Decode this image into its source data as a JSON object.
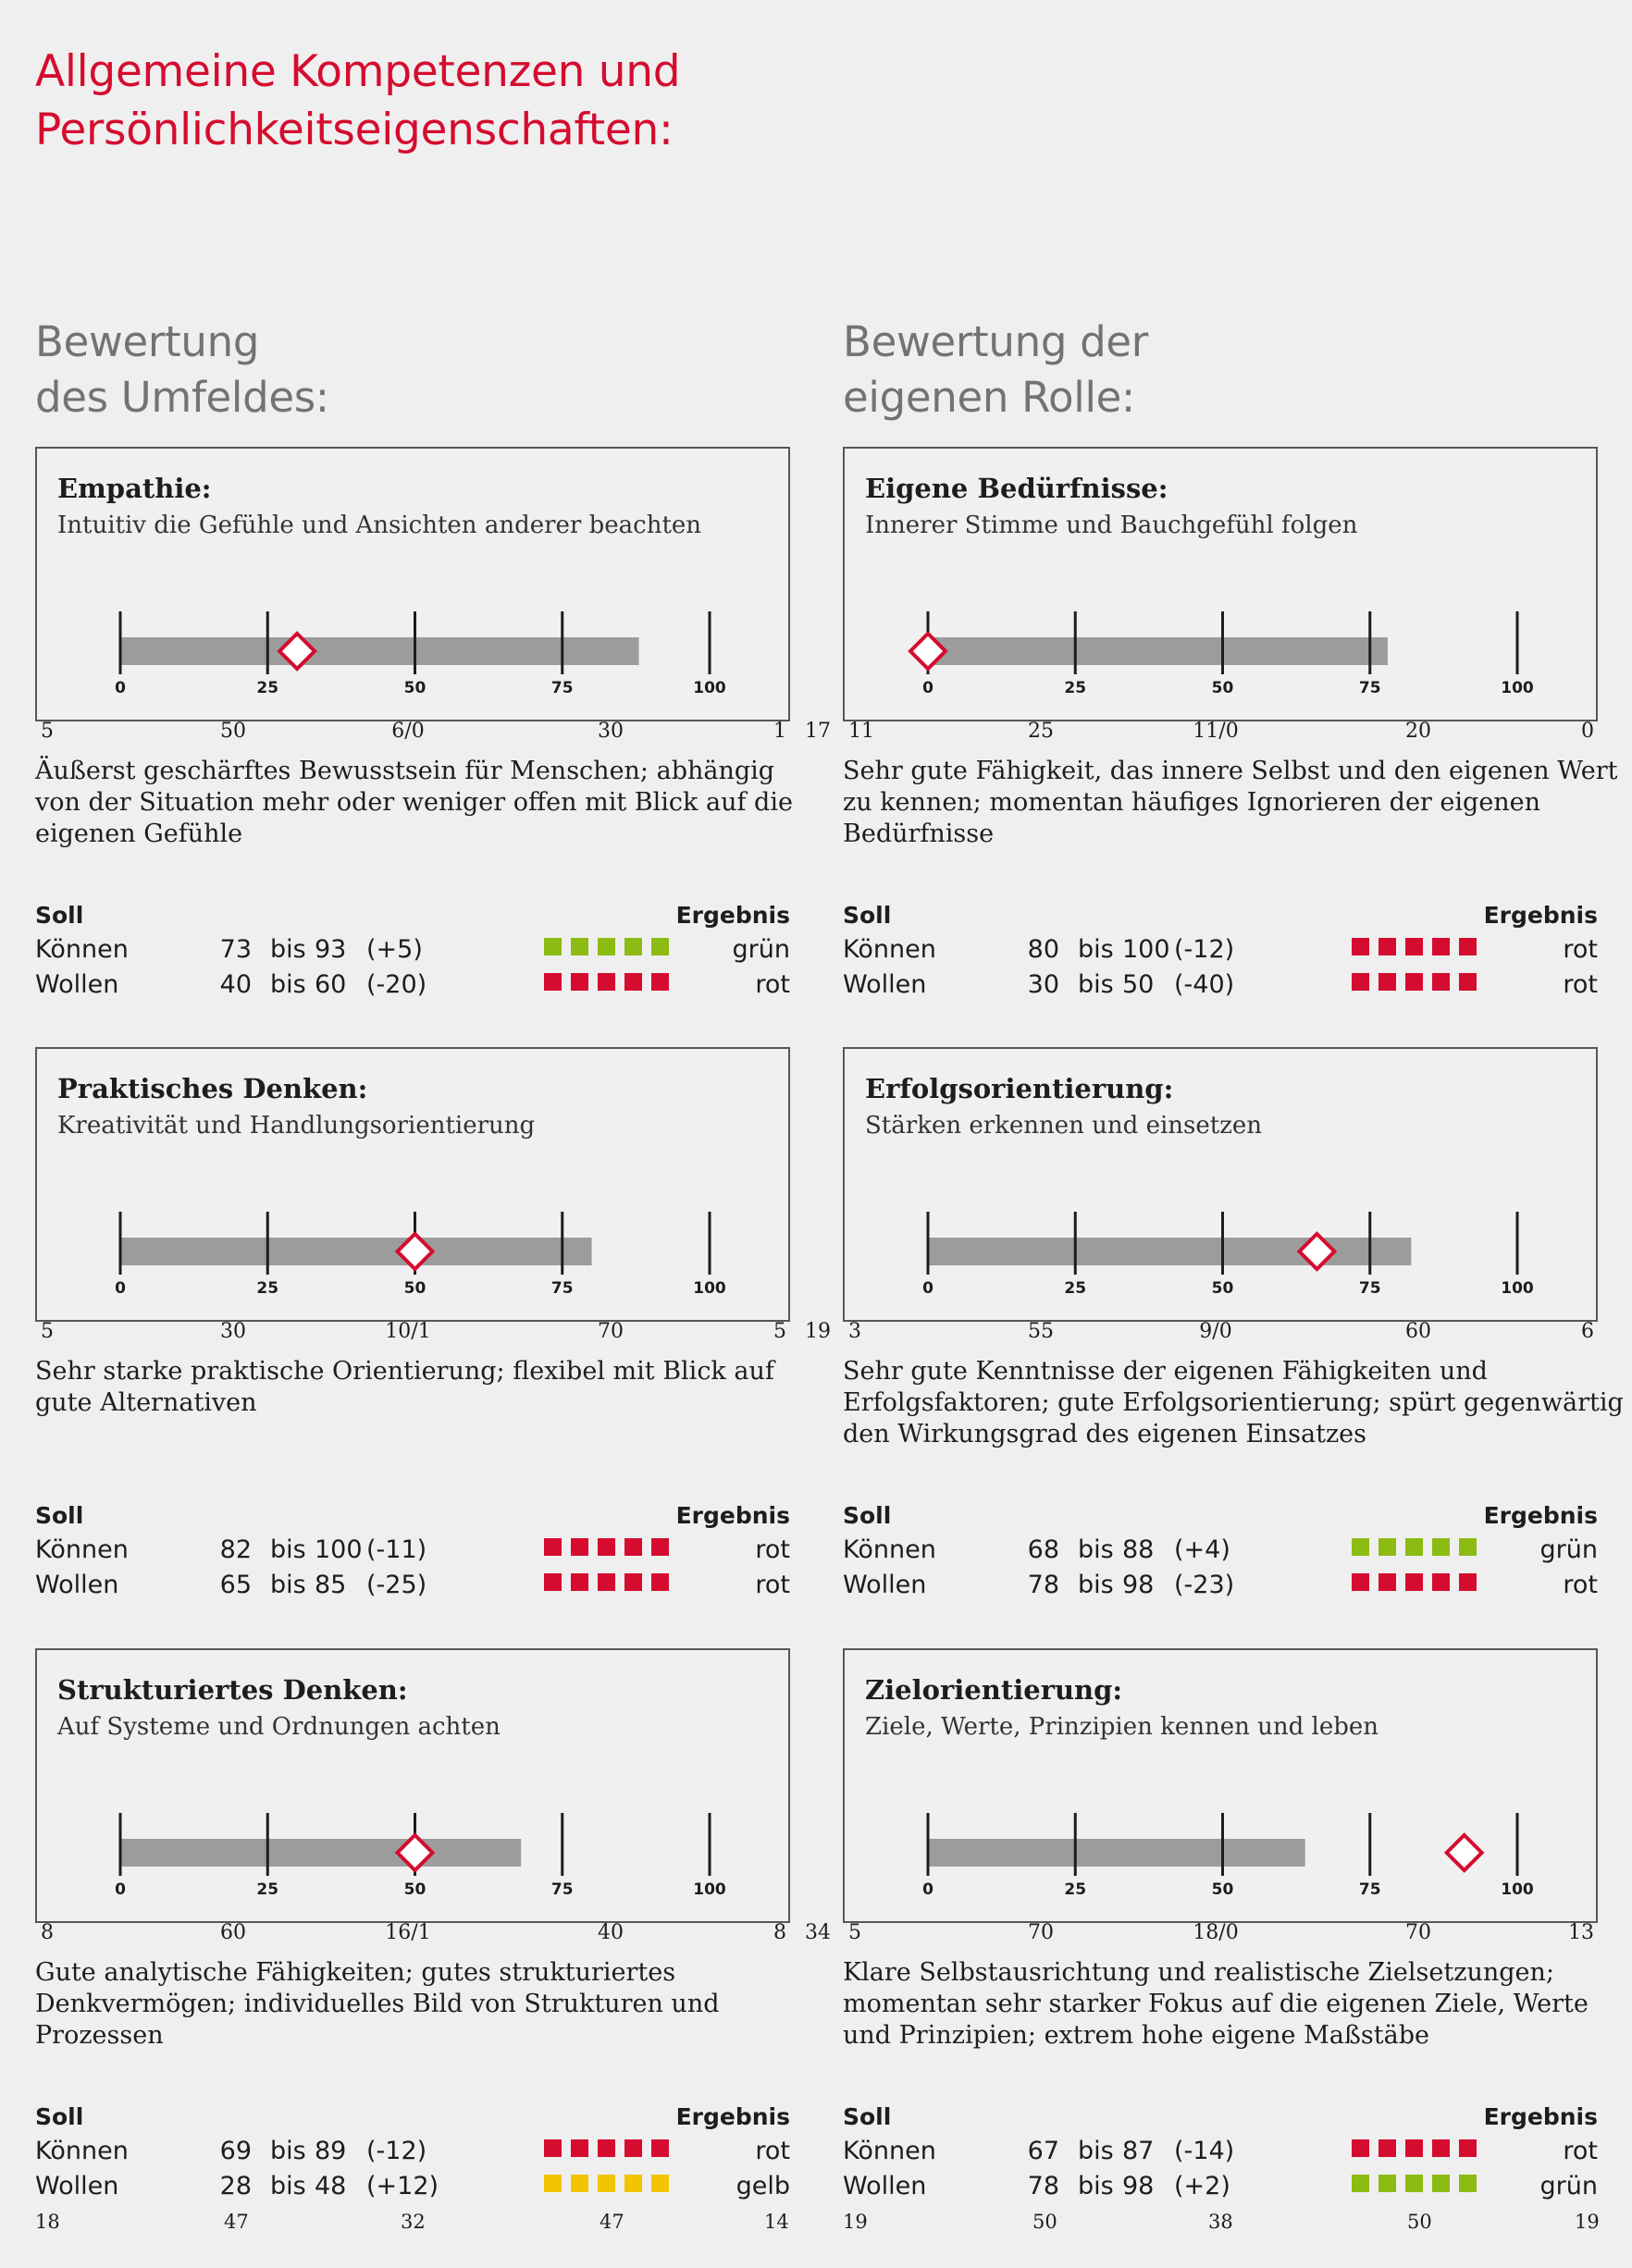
{
  "title": [
    "Allgemeine Kompetenzen und",
    "Persönlichkeitseigenschaften:"
  ],
  "columns": [
    {
      "heading": [
        "Bewertung",
        "des Umfeldes:"
      ]
    },
    {
      "heading": [
        "Bewertung der",
        "eigenen Rolle:"
      ]
    }
  ],
  "scale_labels": [
    "0",
    "25",
    "50",
    "75",
    "100"
  ],
  "soll_label": "Soll",
  "ergebnis_label": "Ergebnis",
  "colors": {
    "rot": "#d50c2f",
    "gruen": "#8cbb13",
    "gelb": "#f2c500",
    "bar": "#9c9c9c"
  },
  "sections": [
    {
      "title": "Empathie:",
      "subtitle": "Intuitiv die Gefühle und Ansichten anderer beachten",
      "bar_value": 88,
      "marker_value": 30,
      "codes": [
        "5",
        "50",
        "6/0",
        "30",
        "1"
      ],
      "side_number": "17",
      "description": [
        "Äußerst geschärftes Bewusstsein für Menschen; abhängig",
        "von der Situation mehr oder weniger offen mit Blick auf die",
        "eigenen Gefühle"
      ],
      "rows": [
        {
          "label": "Können",
          "from": "73",
          "bis": "bis",
          "to": "93",
          "delta": "(+5)",
          "color": "gruen",
          "result": "grün"
        },
        {
          "label": "Wollen",
          "from": "40",
          "bis": "bis",
          "to": "60",
          "delta": "(-20)",
          "color": "rot",
          "result": "rot"
        }
      ]
    },
    {
      "title": "Eigene Bedürfnisse:",
      "subtitle": "Innerer Stimme und Bauchgefühl folgen",
      "bar_value": 78,
      "marker_value": 0,
      "codes": [
        "11",
        "25",
        "11/0",
        "20",
        "0"
      ],
      "side_number": "",
      "description": [
        "Sehr gute Fähigkeit, das innere Selbst und den eigenen Wert",
        "zu kennen; momentan häufiges Ignorieren der eigenen",
        "Bedürfnisse"
      ],
      "rows": [
        {
          "label": "Können",
          "from": "80",
          "bis": "bis",
          "to": "100",
          "delta": "(-12)",
          "color": "rot",
          "result": "rot"
        },
        {
          "label": "Wollen",
          "from": "30",
          "bis": "bis",
          "to": "50",
          "delta": "(-40)",
          "color": "rot",
          "result": "rot"
        }
      ]
    },
    {
      "title": "Praktisches Denken:",
      "subtitle": "Kreativität und Handlungsorientierung",
      "bar_value": 80,
      "marker_value": 50,
      "codes": [
        "5",
        "30",
        "10/1",
        "70",
        "5"
      ],
      "side_number": "19",
      "description": [
        "Sehr starke praktische Orientierung; flexibel mit Blick auf",
        "gute Alternativen"
      ],
      "rows": [
        {
          "label": "Können",
          "from": "82",
          "bis": "bis",
          "to": "100",
          "delta": "(-11)",
          "color": "rot",
          "result": "rot"
        },
        {
          "label": "Wollen",
          "from": "65",
          "bis": "bis",
          "to": "85",
          "delta": "(-25)",
          "color": "rot",
          "result": "rot"
        }
      ]
    },
    {
      "title": "Erfolgsorientierung:",
      "subtitle": "Stärken erkennen und einsetzen",
      "bar_value": 82,
      "marker_value": 66,
      "codes": [
        "3",
        "55",
        "9/0",
        "60",
        "6"
      ],
      "side_number": "",
      "description": [
        "Sehr gute Kenntnisse der eigenen Fähigkeiten und",
        "Erfolgsfaktoren; gute Erfolgsorientierung; spürt gegenwärtig",
        "den Wirkungsgrad des eigenen Einsatzes"
      ],
      "rows": [
        {
          "label": "Können",
          "from": "68",
          "bis": "bis",
          "to": "88",
          "delta": "(+4)",
          "color": "gruen",
          "result": "grün"
        },
        {
          "label": "Wollen",
          "from": "78",
          "bis": "bis",
          "to": "98",
          "delta": "(-23)",
          "color": "rot",
          "result": "rot"
        }
      ]
    },
    {
      "title": "Strukturiertes Denken:",
      "subtitle": "Auf Systeme und Ordnungen achten",
      "bar_value": 68,
      "marker_value": 50,
      "codes": [
        "8",
        "60",
        "16/1",
        "40",
        "8"
      ],
      "side_number": "34",
      "description": [
        "Gute analytische Fähigkeiten; gutes strukturiertes",
        "Denkvermögen; individuelles Bild von Strukturen und",
        "Prozessen"
      ],
      "rows": [
        {
          "label": "Können",
          "from": "69",
          "bis": "bis",
          "to": "89",
          "delta": "(-12)",
          "color": "rot",
          "result": "rot"
        },
        {
          "label": "Wollen",
          "from": "28",
          "bis": "bis",
          "to": "48",
          "delta": "(+12)",
          "color": "gelb",
          "result": "gelb"
        }
      ]
    },
    {
      "title": "Zielorientierung:",
      "subtitle": "Ziele, Werte, Prinzipien kennen und leben",
      "bar_value": 64,
      "marker_value": 91,
      "codes": [
        "5",
        "70",
        "18/0",
        "70",
        "13"
      ],
      "side_number": "",
      "description": [
        "Klare Selbstausrichtung und realistische Zielsetzungen;",
        "momentan sehr starker Fokus auf die eigenen Ziele, Werte",
        "und Prinzipien; extrem hohe eigene Maßstäbe"
      ],
      "rows": [
        {
          "label": "Können",
          "from": "67",
          "bis": "bis",
          "to": "87",
          "delta": "(-14)",
          "color": "rot",
          "result": "rot"
        },
        {
          "label": "Wollen",
          "from": "78",
          "bis": "bis",
          "to": "98",
          "delta": "(+2)",
          "color": "gruen",
          "result": "grün"
        }
      ]
    }
  ],
  "footer_left": [
    "18",
    "47",
    "32",
    "47",
    "14"
  ],
  "footer_right": [
    "19",
    "50",
    "38",
    "50",
    "19"
  ]
}
